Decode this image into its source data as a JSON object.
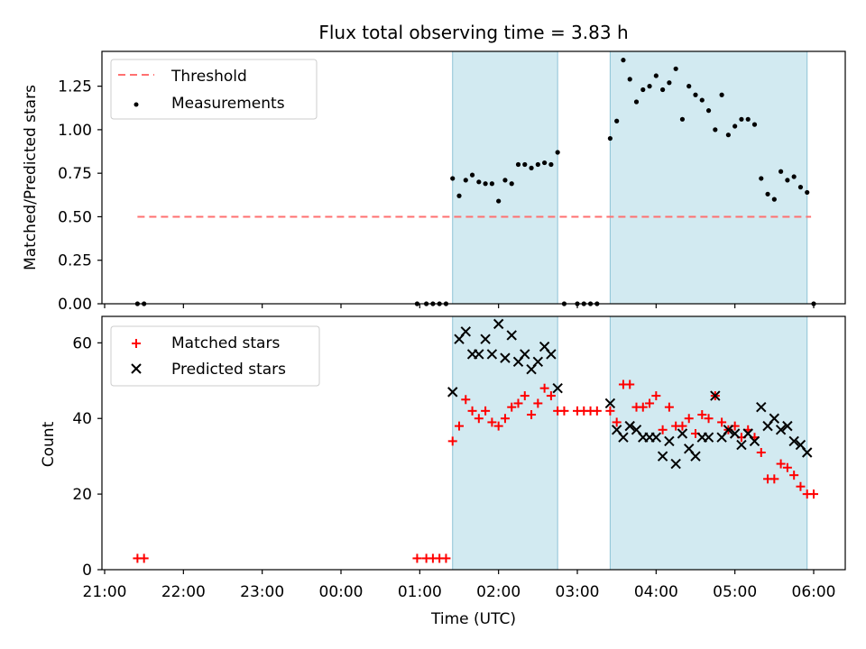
{
  "title": "Flux total observing time = 3.83 h",
  "chart_data": [
    {
      "type": "scatter",
      "panel": "top",
      "ylabel": "Matched/Predicted stars",
      "ylim": [
        0,
        1.45
      ],
      "yticks": [
        0.0,
        0.25,
        0.5,
        0.75,
        1.0,
        1.25
      ],
      "ytick_labels": [
        "0.00",
        "0.25",
        "0.50",
        "0.75",
        "1.00",
        "1.25"
      ],
      "legend": {
        "position": "top-left",
        "entries": [
          "Threshold",
          "Measurements"
        ]
      },
      "threshold": {
        "name": "Threshold",
        "value": 0.5,
        "x_start": "21:25",
        "x_end": "05:58",
        "color": "#ff7070"
      },
      "measurements": {
        "name": "Measurements",
        "color": "#000000",
        "points": [
          [
            "21:25",
            0
          ],
          [
            "21:30",
            0
          ],
          [
            "00:58",
            0
          ],
          [
            "01:05",
            0
          ],
          [
            "01:10",
            0
          ],
          [
            "01:15",
            0
          ],
          [
            "01:20",
            0
          ],
          [
            "01:25",
            0.72
          ],
          [
            "01:30",
            0.62
          ],
          [
            "01:35",
            0.71
          ],
          [
            "01:40",
            0.74
          ],
          [
            "01:45",
            0.7
          ],
          [
            "01:50",
            0.69
          ],
          [
            "01:55",
            0.69
          ],
          [
            "02:00",
            0.59
          ],
          [
            "02:05",
            0.71
          ],
          [
            "02:10",
            0.69
          ],
          [
            "02:15",
            0.8
          ],
          [
            "02:20",
            0.8
          ],
          [
            "02:25",
            0.78
          ],
          [
            "02:30",
            0.8
          ],
          [
            "02:35",
            0.81
          ],
          [
            "02:40",
            0.8
          ],
          [
            "02:45",
            0.87
          ],
          [
            "02:50",
            0
          ],
          [
            "03:00",
            0
          ],
          [
            "03:05",
            0
          ],
          [
            "03:10",
            0
          ],
          [
            "03:15",
            0
          ],
          [
            "03:25",
            0.95
          ],
          [
            "03:30",
            1.05
          ],
          [
            "03:35",
            1.4
          ],
          [
            "03:40",
            1.29
          ],
          [
            "03:45",
            1.16
          ],
          [
            "03:50",
            1.23
          ],
          [
            "03:55",
            1.25
          ],
          [
            "04:00",
            1.31
          ],
          [
            "04:05",
            1.23
          ],
          [
            "04:10",
            1.27
          ],
          [
            "04:15",
            1.35
          ],
          [
            "04:20",
            1.06
          ],
          [
            "04:25",
            1.25
          ],
          [
            "04:30",
            1.2
          ],
          [
            "04:35",
            1.17
          ],
          [
            "04:40",
            1.11
          ],
          [
            "04:45",
            1.0
          ],
          [
            "04:50",
            1.2
          ],
          [
            "04:55",
            0.97
          ],
          [
            "05:00",
            1.02
          ],
          [
            "05:05",
            1.06
          ],
          [
            "05:10",
            1.06
          ],
          [
            "05:15",
            1.03
          ],
          [
            "05:20",
            0.72
          ],
          [
            "05:25",
            0.63
          ],
          [
            "05:30",
            0.6
          ],
          [
            "05:35",
            0.76
          ],
          [
            "05:40",
            0.71
          ],
          [
            "05:45",
            0.73
          ],
          [
            "05:50",
            0.67
          ],
          [
            "05:55",
            0.64
          ],
          [
            "06:00",
            0
          ]
        ]
      },
      "shaded_intervals": [
        [
          "01:25",
          "02:45"
        ],
        [
          "03:25",
          "05:55"
        ]
      ],
      "shade_color": "#add8e6"
    },
    {
      "type": "scatter",
      "panel": "bottom",
      "xlabel": "Time (UTC)",
      "ylabel": "Count",
      "ylim": [
        0,
        67
      ],
      "yticks": [
        0,
        20,
        40,
        60
      ],
      "ytick_labels": [
        "0",
        "20",
        "40",
        "60"
      ],
      "x_range": [
        "21:00",
        "06:25"
      ],
      "xticks": [
        "21:00",
        "22:00",
        "23:00",
        "00:00",
        "01:00",
        "02:00",
        "03:00",
        "04:00",
        "05:00",
        "06:00"
      ],
      "legend": {
        "position": "top-left",
        "entries": [
          "Matched stars",
          "Predicted stars"
        ]
      },
      "series": [
        {
          "name": "Matched stars",
          "marker": "plus",
          "color": "#ff0000",
          "points": [
            [
              "21:25",
              3
            ],
            [
              "21:30",
              3
            ],
            [
              "00:58",
              3
            ],
            [
              "01:05",
              3
            ],
            [
              "01:10",
              3
            ],
            [
              "01:15",
              3
            ],
            [
              "01:20",
              3
            ],
            [
              "01:25",
              34
            ],
            [
              "01:30",
              38
            ],
            [
              "01:35",
              45
            ],
            [
              "01:40",
              42
            ],
            [
              "01:45",
              40
            ],
            [
              "01:50",
              42
            ],
            [
              "01:55",
              39
            ],
            [
              "02:00",
              38
            ],
            [
              "02:05",
              40
            ],
            [
              "02:10",
              43
            ],
            [
              "02:15",
              44
            ],
            [
              "02:20",
              46
            ],
            [
              "02:25",
              41
            ],
            [
              "02:30",
              44
            ],
            [
              "02:35",
              48
            ],
            [
              "02:40",
              46
            ],
            [
              "02:45",
              42
            ],
            [
              "02:50",
              42
            ],
            [
              "03:00",
              42
            ],
            [
              "03:05",
              42
            ],
            [
              "03:10",
              42
            ],
            [
              "03:15",
              42
            ],
            [
              "03:25",
              42
            ],
            [
              "03:30",
              39
            ],
            [
              "03:35",
              49
            ],
            [
              "03:40",
              49
            ],
            [
              "03:45",
              43
            ],
            [
              "03:50",
              43
            ],
            [
              "03:55",
              44
            ],
            [
              "04:00",
              46
            ],
            [
              "04:05",
              37
            ],
            [
              "04:10",
              43
            ],
            [
              "04:15",
              38
            ],
            [
              "04:20",
              38
            ],
            [
              "04:25",
              40
            ],
            [
              "04:30",
              36
            ],
            [
              "04:35",
              41
            ],
            [
              "04:40",
              40
            ],
            [
              "04:45",
              46
            ],
            [
              "04:50",
              39
            ],
            [
              "04:55",
              37
            ],
            [
              "05:00",
              38
            ],
            [
              "05:05",
              35
            ],
            [
              "05:10",
              37
            ],
            [
              "05:15",
              35
            ],
            [
              "05:20",
              31
            ],
            [
              "05:25",
              24
            ],
            [
              "05:30",
              24
            ],
            [
              "05:35",
              28
            ],
            [
              "05:40",
              27
            ],
            [
              "05:45",
              25
            ],
            [
              "05:50",
              22
            ],
            [
              "05:55",
              20
            ],
            [
              "06:00",
              20
            ]
          ]
        },
        {
          "name": "Predicted stars",
          "marker": "x",
          "color": "#000000",
          "points": [
            [
              "01:25",
              47
            ],
            [
              "01:30",
              61
            ],
            [
              "01:35",
              63
            ],
            [
              "01:40",
              57
            ],
            [
              "01:45",
              57
            ],
            [
              "01:50",
              61
            ],
            [
              "01:55",
              57
            ],
            [
              "02:00",
              65
            ],
            [
              "02:05",
              56
            ],
            [
              "02:10",
              62
            ],
            [
              "02:15",
              55
            ],
            [
              "02:20",
              57
            ],
            [
              "02:25",
              53
            ],
            [
              "02:30",
              55
            ],
            [
              "02:35",
              59
            ],
            [
              "02:40",
              57
            ],
            [
              "02:45",
              48
            ],
            [
              "03:25",
              44
            ],
            [
              "03:30",
              37
            ],
            [
              "03:35",
              35
            ],
            [
              "03:40",
              38
            ],
            [
              "03:45",
              37
            ],
            [
              "03:50",
              35
            ],
            [
              "03:55",
              35
            ],
            [
              "04:00",
              35
            ],
            [
              "04:05",
              30
            ],
            [
              "04:10",
              34
            ],
            [
              "04:15",
              28
            ],
            [
              "04:20",
              36
            ],
            [
              "04:25",
              32
            ],
            [
              "04:30",
              30
            ],
            [
              "04:35",
              35
            ],
            [
              "04:40",
              35
            ],
            [
              "04:45",
              46
            ],
            [
              "04:50",
              35
            ],
            [
              "04:55",
              37
            ],
            [
              "05:00",
              36
            ],
            [
              "05:05",
              33
            ],
            [
              "05:10",
              36
            ],
            [
              "05:15",
              34
            ],
            [
              "05:20",
              43
            ],
            [
              "05:25",
              38
            ],
            [
              "05:30",
              40
            ],
            [
              "05:35",
              37
            ],
            [
              "05:40",
              38
            ],
            [
              "05:45",
              34
            ],
            [
              "05:50",
              33
            ],
            [
              "05:55",
              31
            ]
          ]
        }
      ],
      "shaded_intervals": [
        [
          "01:25",
          "02:45"
        ],
        [
          "03:25",
          "05:55"
        ]
      ],
      "shade_color": "#add8e6"
    }
  ]
}
